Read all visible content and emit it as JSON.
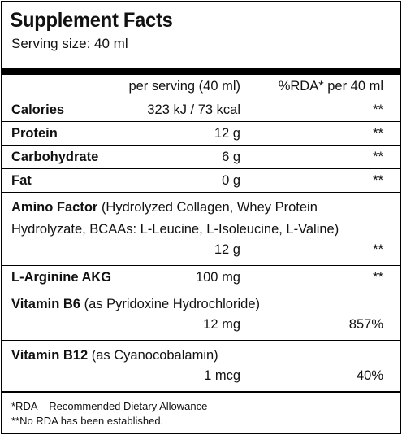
{
  "header": {
    "title": "Supplement Facts",
    "serving_size": "Serving size: 40 ml"
  },
  "table": {
    "columns": [
      "per serving (40 ml)",
      "%RDA* per 40 ml"
    ],
    "rows": [
      {
        "name": "Calories",
        "amount": "323 kJ / 73 kcal",
        "rda": "**"
      },
      {
        "name": "Protein",
        "amount": "12 g",
        "rda": "**"
      },
      {
        "name": "Carbohydrate",
        "amount": "6 g",
        "rda": "**"
      },
      {
        "name": "Fat",
        "amount": "0 g",
        "rda": "**"
      },
      {
        "name": "Amino Factor",
        "detail": "(Hydrolyzed Collagen, Whey Protein Hydrolyzate, BCAAs: L-Leucine, L-Isoleucine, L-Valine)",
        "amount": "12 g",
        "rda": "**"
      },
      {
        "name": "L-Arginine AKG",
        "amount": "100 mg",
        "rda": "**"
      },
      {
        "name": "Vitamin B6",
        "detail": "(as Pyridoxine Hydrochloride)",
        "amount": "12 mg",
        "rda": "857%"
      },
      {
        "name": "Vitamin B12",
        "detail": "(as Cyanocobalamin)",
        "amount": "1 mcg",
        "rda": "40%"
      }
    ]
  },
  "footnotes": [
    "*RDA – Recommended Dietary Allowance",
    "**No RDA has been established."
  ]
}
